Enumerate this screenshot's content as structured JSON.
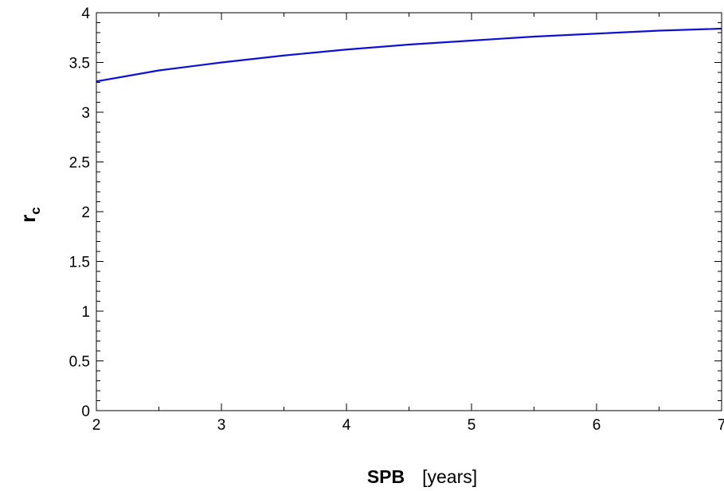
{
  "chart_data": {
    "type": "line",
    "title": "",
    "xlabel": {
      "main": "SPB",
      "unit": "[years]"
    },
    "ylabel": {
      "main": "r",
      "subscript": "c"
    },
    "xlim": [
      2,
      7
    ],
    "ylim": [
      0,
      4
    ],
    "x_ticks": [
      2,
      3,
      4,
      5,
      6,
      7
    ],
    "x_tick_labels": [
      "2",
      "3",
      "4",
      "5",
      "6",
      "7"
    ],
    "y_ticks": [
      0,
      0.5,
      1,
      1.5,
      2,
      2.5,
      3,
      3.5,
      4
    ],
    "y_tick_labels": [
      "0",
      "0.5",
      "1",
      "1.5",
      "2",
      "2.5",
      "3",
      "3.5",
      "4"
    ],
    "grid": false,
    "series": [
      {
        "color": "#1010d0",
        "x": [
          2,
          2.5,
          3,
          3.5,
          4,
          4.5,
          5,
          5.5,
          6,
          6.5,
          7
        ],
        "y": [
          3.31,
          3.42,
          3.5,
          3.57,
          3.63,
          3.68,
          3.72,
          3.76,
          3.79,
          3.82,
          3.84
        ]
      }
    ]
  }
}
